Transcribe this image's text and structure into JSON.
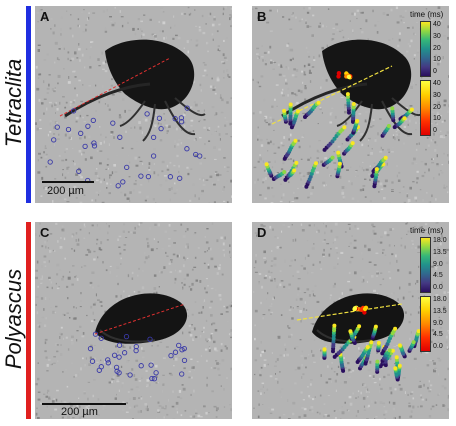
{
  "rows": [
    {
      "label": "Tetraclita",
      "bar_color": "#1f2ee0"
    },
    {
      "label": "Polyascus",
      "bar_color": "#e0201f"
    }
  ],
  "panels": {
    "A": {
      "letter": "A",
      "scalebar": "200 µm"
    },
    "B": {
      "letter": "B",
      "colorbar_title": "time (ms)",
      "top_ticks": [
        "40",
        "30",
        "20",
        "10",
        "0"
      ],
      "bottom_ticks": [
        "40",
        "30",
        "20",
        "10",
        "0"
      ]
    },
    "C": {
      "letter": "C",
      "scalebar": "200 µm"
    },
    "D": {
      "letter": "D",
      "colorbar_title": "time (ms)",
      "top_ticks": [
        "18.0",
        "13.5",
        "9.0",
        "4.5",
        "0.0"
      ],
      "bottom_ticks": [
        "18.0",
        "13.5",
        "9.0",
        "4.5",
        "0.0"
      ]
    }
  },
  "colors": {
    "viridis_top": "#f9e721",
    "viridis_bottom": "#2a0f5e",
    "heat_top": "#ffff40",
    "heat_bottom": "#e00000",
    "particle_ring": "#3a3aa8",
    "axis_line_red": "#e03030",
    "axis_line_yellow": "#f0e040"
  }
}
